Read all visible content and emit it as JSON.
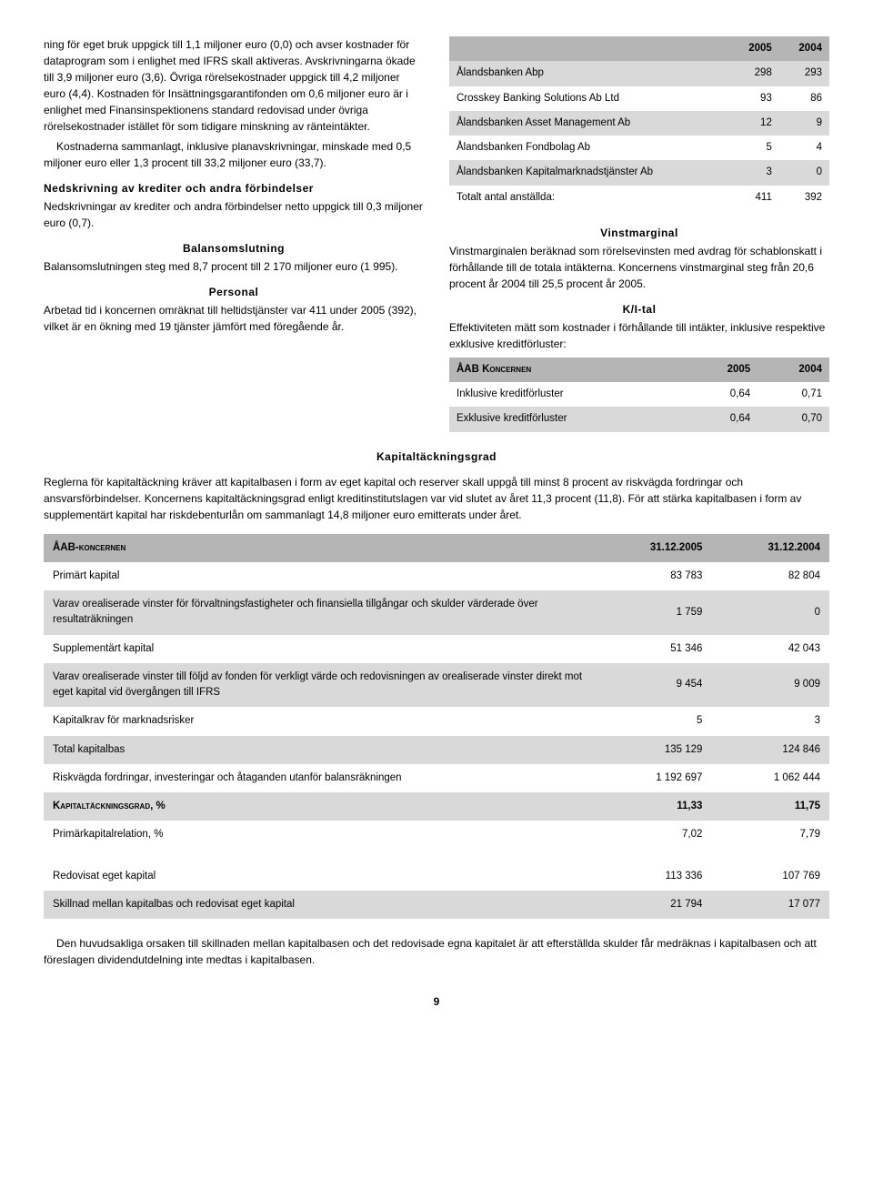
{
  "left": {
    "para1": "ning för eget bruk uppgick till 1,1 miljoner euro (0,0) och avser kostnader för dataprogram som i enlighet med IFRS skall aktiveras. Avskrivningarna ökade till 3,9 miljoner euro (3,6). Övriga rörelsekostnader uppgick till 4,2 miljoner euro (4,4). Kostnaden för Insättningsgarantifonden om 0,6 miljoner euro är i enlighet med Finansinspektionens standard redovisad under övriga rörelsekostnader istället för som tidigare minskning av ränteintäkter.",
    "para2": "Kostnaderna sammanlagt, inklusive planavskrivningar, minskade med 0,5 miljoner euro eller 1,3 procent till 33,2 miljoner euro (33,7).",
    "nedskrivning_title": "Nedskrivning av krediter och andra förbindelser",
    "nedskrivning_text": "Nedskrivningar av krediter och andra förbindelser netto uppgick till 0,3 miljoner euro (0,7).",
    "balans_title": "Balansomslutning",
    "balans_text": "Balansomslutningen steg med 8,7 procent till 2 170 miljoner euro (1 995).",
    "personal_title": "Personal",
    "personal_text": "Arbetad tid i koncernen omräknat till heltidstjänster var 411 under 2005 (392), vilket är en ökning med 19 tjänster jämfört med föregående år."
  },
  "table1": {
    "h_y1": "2005",
    "h_y2": "2004",
    "rows": [
      {
        "label": "Ålandsbanken Abp",
        "y1": "298",
        "y2": "293",
        "alt": false
      },
      {
        "label": "Crosskey Banking Solutions Ab Ltd",
        "y1": "93",
        "y2": "86",
        "alt": true
      },
      {
        "label": "Ålandsbanken Asset Management Ab",
        "y1": "12",
        "y2": "9",
        "alt": false
      },
      {
        "label": "Ålandsbanken Fondbolag Ab",
        "y1": "5",
        "y2": "4",
        "alt": true
      },
      {
        "label": "Ålandsbanken Kapitalmarknadstjänster Ab",
        "y1": "3",
        "y2": "0",
        "alt": false
      },
      {
        "label": "Totalt antal anställda:",
        "y1": "411",
        "y2": "392",
        "alt": true
      }
    ]
  },
  "right": {
    "vinst_title": "Vinstmarginal",
    "vinst_text": "Vinstmarginalen beräknad som rörelsevinsten med avdrag för schablonskatt i förhållande till de totala intäkterna. Koncernens vinstmarginal steg från 20,6 procent år 2004 till 25,5 procent år 2005.",
    "ki_title": "K/I-tal",
    "ki_text": "Effektiviteten mätt som kostnader i förhållande till intäkter, inklusive respektive exklusive kreditförluster:"
  },
  "table2": {
    "h_label": "ÅAB Koncernen",
    "h_y1": "2005",
    "h_y2": "2004",
    "rows": [
      {
        "label": "Inklusive kreditförluster",
        "y1": "0,64",
        "y2": "0,71",
        "alt": true
      },
      {
        "label": "Exklusive kreditförluster",
        "y1": "0,64",
        "y2": "0,70",
        "alt": false
      }
    ]
  },
  "kapital": {
    "title": "Kapitaltäckningsgrad",
    "para": "Reglerna för kapitaltäckning kräver att kapitalbasen i form av eget kapital och reserver skall uppgå till minst 8 procent av riskvägda fordringar och ansvarsförbindelser. Koncernens kapitaltäckningsgrad enligt kreditinstitutslagen var vid slutet av året 11,3 procent (11,8). För att stärka kapitalbasen i form av supplementärt kapital har riskdebenturlån om sammanlagt 14,8 miljoner euro emitterats under året."
  },
  "table3": {
    "h_label": "ÅAB-koncernen",
    "h_y1": "31.12.2005",
    "h_y2": "31.12.2004",
    "rows": [
      {
        "label": "Primärt kapital",
        "y1": "83 783",
        "y2": "82 804",
        "alt": true
      },
      {
        "label": "Varav orealiserade vinster för förvaltningsfastigheter och finansiella tillgångar och skulder värderade över resultaträkningen",
        "y1": "1 759",
        "y2": "0",
        "alt": false
      },
      {
        "label": "Supplementärt kapital",
        "y1": "51 346",
        "y2": "42 043",
        "alt": true
      },
      {
        "label": "Varav orealiserade vinster till följd av fonden för verkligt värde och redovisningen av orealiserade vinster direkt mot eget kapital vid övergången till IFRS",
        "y1": "9 454",
        "y2": "9 009",
        "alt": false
      },
      {
        "label": "Kapitalkrav för marknadsrisker",
        "y1": "5",
        "y2": "3",
        "alt": true
      },
      {
        "label": "Total kapitalbas",
        "y1": "135 129",
        "y2": "124 846",
        "alt": false
      },
      {
        "label": "Riskvägda fordringar, investeringar och åtaganden utanför balansräkningen",
        "y1": "1 192 697",
        "y2": "1 062 444",
        "alt": true
      },
      {
        "label": "Kapitaltäckningsgrad, %",
        "y1": "11,33",
        "y2": "11,75",
        "alt": false,
        "bold": true,
        "sc": true
      },
      {
        "label": "Primärkapitalrelation, %",
        "y1": "7,02",
        "y2": "7,79",
        "alt": true
      },
      {
        "label": "",
        "y1": "",
        "y2": "",
        "alt": false,
        "spacer": true
      },
      {
        "label": "Redovisat eget kapital",
        "y1": "113 336",
        "y2": "107 769",
        "alt": true
      },
      {
        "label": "Skillnad mellan kapitalbas och redovisat eget kapital",
        "y1": "21 794",
        "y2": "17 077",
        "alt": false
      }
    ]
  },
  "footer_para": "Den huvudsakliga orsaken till skillnaden mellan kapitalbasen och det redovisade egna kapitalet är att efterställda skulder får medräknas i kapitalbasen och att föreslagen dividendutdelning inte medtas i kapitalbasen.",
  "page_number": "9"
}
